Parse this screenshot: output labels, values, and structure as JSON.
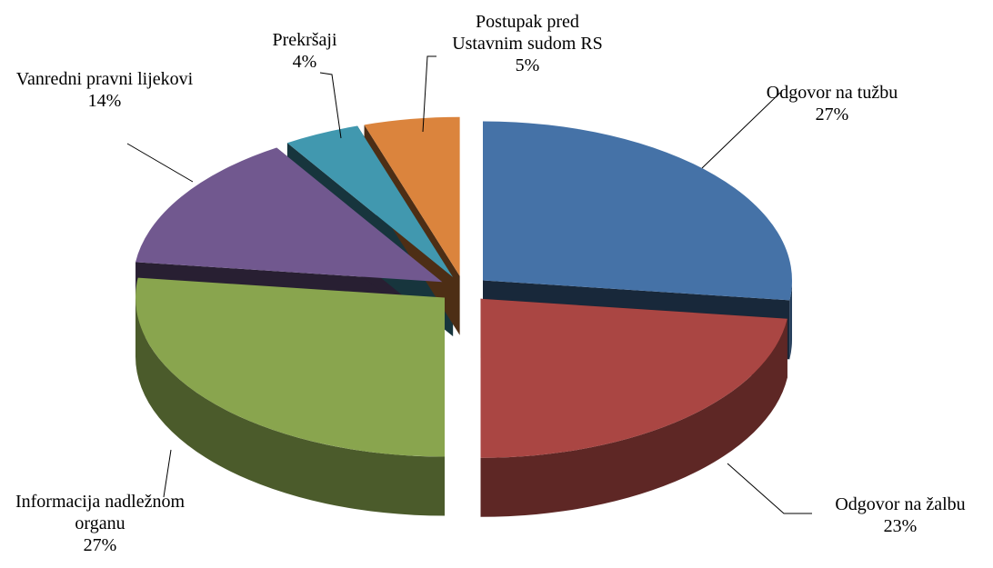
{
  "chart_data": {
    "type": "pie",
    "categories": [
      "Odgovor na tužbu",
      "Odgovor na žalbu",
      "Informacija nadležnom organu",
      "Vanredni pravni lijekovi",
      "Prekršaji",
      "Postupak pred Ustavnim sudom RS"
    ],
    "values": [
      27,
      23,
      27,
      14,
      4,
      5
    ],
    "value_labels": [
      "27%",
      "23%",
      "27%",
      "14%",
      "4%",
      "5%"
    ],
    "colors": [
      "#4572a7",
      "#aa4643",
      "#89a54e",
      "#71588f",
      "#4198af",
      "#db843d"
    ]
  }
}
